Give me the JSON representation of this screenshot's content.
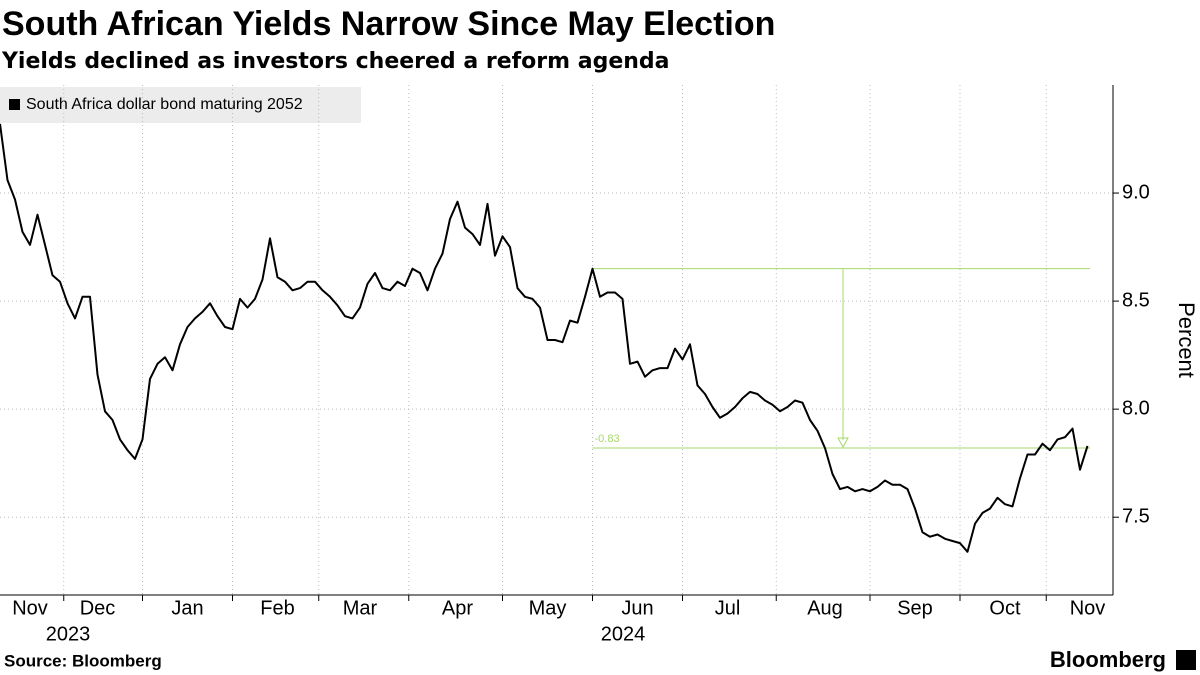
{
  "chart_data": {
    "type": "line",
    "title": "South African Yields Narrow Since May Election",
    "subtitle": "Yields declined as investors cheered a reform agenda",
    "y_label": "Percent",
    "source": "Source: Bloomberg",
    "brand": "Bloomberg",
    "year_labels": [
      "2023",
      "2024"
    ],
    "categories": [
      null,
      null,
      null,
      null,
      "Nov",
      null,
      null,
      null,
      null,
      null,
      null,
      null,
      null,
      "Dec",
      null,
      null,
      null,
      null,
      null,
      null,
      null,
      null,
      null,
      null,
      null,
      "Jan",
      null,
      null,
      null,
      null,
      null,
      null,
      null,
      null,
      null,
      null,
      null,
      "Feb",
      null,
      null,
      null,
      null,
      null,
      null,
      null,
      null,
      null,
      null,
      "Mar",
      null,
      null,
      null,
      null,
      null,
      null,
      null,
      null,
      null,
      null,
      null,
      null,
      "Apr",
      null,
      null,
      null,
      null,
      null,
      null,
      null,
      null,
      null,
      null,
      null,
      "May",
      null,
      null,
      null,
      null,
      null,
      null,
      null,
      null,
      null,
      null,
      null,
      "Jun",
      null,
      null,
      null,
      null,
      null,
      null,
      null,
      null,
      null,
      null,
      null,
      "Jul",
      null,
      null,
      null,
      null,
      null,
      null,
      null,
      null,
      null,
      null,
      null,
      null,
      "Aug",
      null,
      null,
      null,
      null,
      null,
      null,
      null,
      null,
      null,
      null,
      null,
      "Sep",
      null,
      null,
      null,
      null,
      null,
      null,
      null,
      null,
      null,
      null,
      null,
      "Oct",
      null,
      null,
      null,
      null,
      null,
      null,
      null,
      null,
      null,
      null,
      "Nov"
    ],
    "series": [
      {
        "name": "South Africa dollar bond maturing 2052",
        "color": "#000000",
        "values": [
          9.32,
          9.06,
          8.97,
          8.82,
          8.76,
          8.9,
          8.76,
          8.62,
          8.59,
          8.49,
          8.42,
          8.52,
          8.52,
          8.16,
          7.99,
          7.95,
          7.86,
          7.81,
          7.77,
          7.86,
          8.14,
          8.21,
          8.24,
          8.18,
          8.3,
          8.38,
          8.42,
          8.45,
          8.49,
          8.43,
          8.38,
          8.37,
          8.51,
          8.47,
          8.51,
          8.6,
          8.79,
          8.61,
          8.59,
          8.55,
          8.56,
          8.59,
          8.59,
          8.55,
          8.52,
          8.48,
          8.43,
          8.42,
          8.47,
          8.58,
          8.63,
          8.56,
          8.55,
          8.59,
          8.57,
          8.65,
          8.63,
          8.55,
          8.65,
          8.72,
          8.88,
          8.96,
          8.84,
          8.81,
          8.76,
          8.95,
          8.71,
          8.8,
          8.75,
          8.56,
          8.52,
          8.51,
          8.47,
          8.32,
          8.32,
          8.31,
          8.41,
          8.4,
          8.52,
          8.65,
          8.52,
          8.54,
          8.54,
          8.51,
          8.21,
          8.22,
          8.15,
          8.18,
          8.19,
          8.19,
          8.28,
          8.23,
          8.3,
          8.11,
          8.07,
          8.01,
          7.96,
          7.98,
          8.01,
          8.05,
          8.08,
          8.07,
          8.04,
          8.02,
          7.99,
          8.01,
          8.04,
          8.03,
          7.95,
          7.9,
          7.82,
          7.7,
          7.63,
          7.64,
          7.62,
          7.63,
          7.62,
          7.64,
          7.67,
          7.65,
          7.65,
          7.63,
          7.54,
          7.43,
          7.41,
          7.42,
          7.4,
          7.39,
          7.38,
          7.34,
          7.47,
          7.52,
          7.54,
          7.59,
          7.56,
          7.55,
          7.68,
          7.79,
          7.79,
          7.84,
          7.81,
          7.86,
          7.87,
          7.91,
          7.72,
          7.83
        ]
      }
    ],
    "annotation": {
      "change": -0.83,
      "high": 8.65,
      "low": 7.82,
      "color": "#a6d96a"
    },
    "ylim": [
      7.14,
      9.5
    ],
    "yticks": [
      7.5,
      {
        "value": 8.0,
        "label": "8.0"
      },
      8.5,
      {
        "value": 9.0,
        "label": "9.0"
      }
    ],
    "grid": true,
    "legend": "top-left"
  }
}
